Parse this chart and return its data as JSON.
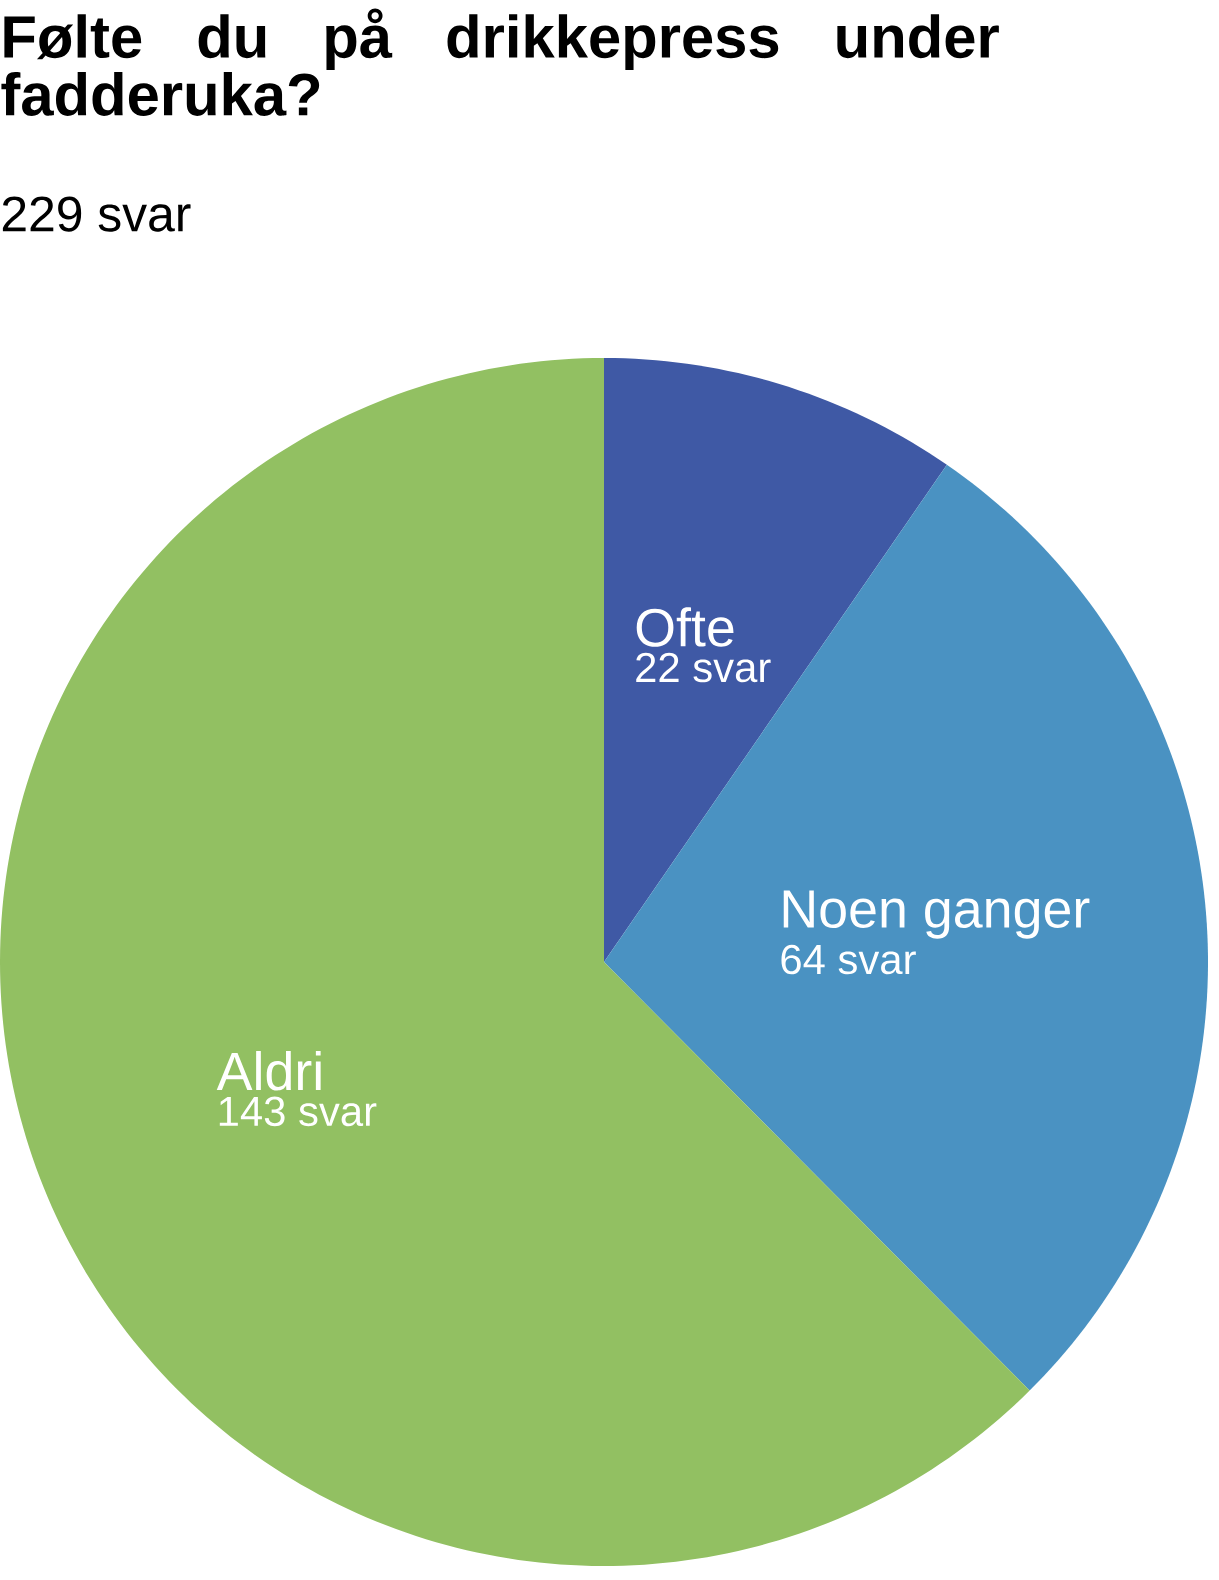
{
  "chart_data": {
    "type": "pie",
    "title": "Følte du på drikkepress under fadderuka?",
    "subtitle": "229 svar",
    "categories": [
      "Ofte",
      "Noen ganger",
      "Aldri"
    ],
    "values": [
      22,
      64,
      143
    ],
    "value_labels": [
      "22 svar",
      "64 svar",
      "143 svar"
    ],
    "colors": [
      "#3f59a5",
      "#4a92c2",
      "#92c062"
    ]
  }
}
